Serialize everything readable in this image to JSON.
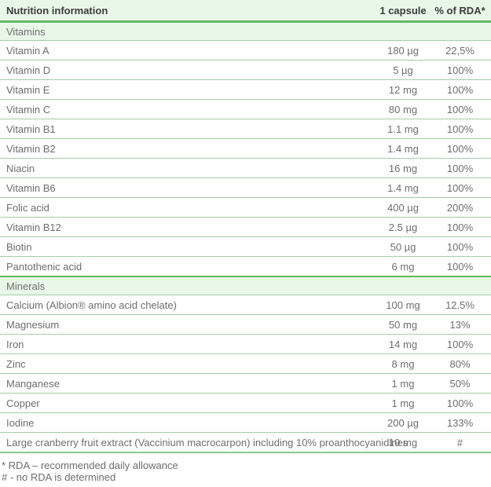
{
  "colors": {
    "header_bg": "#e9f7e9",
    "accent_green": "#62b862",
    "row_border": "#a5cda5",
    "bottom_border": "#8fc48f",
    "header_text": "#3b3b3b",
    "body_text": "#6e6e6e"
  },
  "table": {
    "header": {
      "name": "Nutrition information",
      "per_capsule": "1 capsule",
      "rda": "% of RDA*"
    },
    "sections": [
      {
        "title": "Vitamins",
        "rows": [
          {
            "label": "Vitamin A",
            "amount": "180 µg",
            "rda": "22,5%"
          },
          {
            "label": "Vitamin D",
            "amount": "5 µg",
            "rda": "100%"
          },
          {
            "label": "Vitamin E",
            "amount": "12 mg",
            "rda": "100%"
          },
          {
            "label": "Vitamin C",
            "amount": "80 mg",
            "rda": "100%"
          },
          {
            "label": "Vitamin B1",
            "amount": "1.1 mg",
            "rda": "100%"
          },
          {
            "label": "Vitamin B2",
            "amount": "1.4 mg",
            "rda": "100%"
          },
          {
            "label": "Niacin",
            "amount": "16 mg",
            "rda": "100%"
          },
          {
            "label": "Vitamin B6",
            "amount": "1.4 mg",
            "rda": "100%"
          },
          {
            "label": "Folic acid",
            "amount": "400 µg",
            "rda": "200%"
          },
          {
            "label": "Vitamin B12",
            "amount": "2.5 µg",
            "rda": "100%"
          },
          {
            "label": "Biotin",
            "amount": "50 µg",
            "rda": "100%"
          },
          {
            "label": "Pantothenic acid",
            "amount": "6 mg",
            "rda": "100%"
          }
        ]
      },
      {
        "title": "Minerals",
        "rows": [
          {
            "label": "Calcium (Albion® amino acid chelate)",
            "amount": "100 mg",
            "rda": "12.5%"
          },
          {
            "label": "Magnesium",
            "amount": "50 mg",
            "rda": "13%"
          },
          {
            "label": "Iron",
            "amount": "14 mg",
            "rda": "100%"
          },
          {
            "label": "Zinc",
            "amount": "8 mg",
            "rda": "80%"
          },
          {
            "label": "Manganese",
            "amount": "1 mg",
            "rda": "50%"
          },
          {
            "label": "Copper",
            "amount": "1 mg",
            "rda": "100%"
          },
          {
            "label": "Iodine",
            "amount": "200 µg",
            "rda": "133%"
          }
        ]
      }
    ],
    "extra_rows": [
      {
        "label": "Large cranberry fruit extract (Vaccinium macrocarpon) including 10% proanthocyanidines",
        "amount": "10 mg",
        "rda": "#"
      }
    ],
    "footnotes": [
      "* RDA – recommended daily allowance",
      "# - no RDA is determined"
    ]
  }
}
